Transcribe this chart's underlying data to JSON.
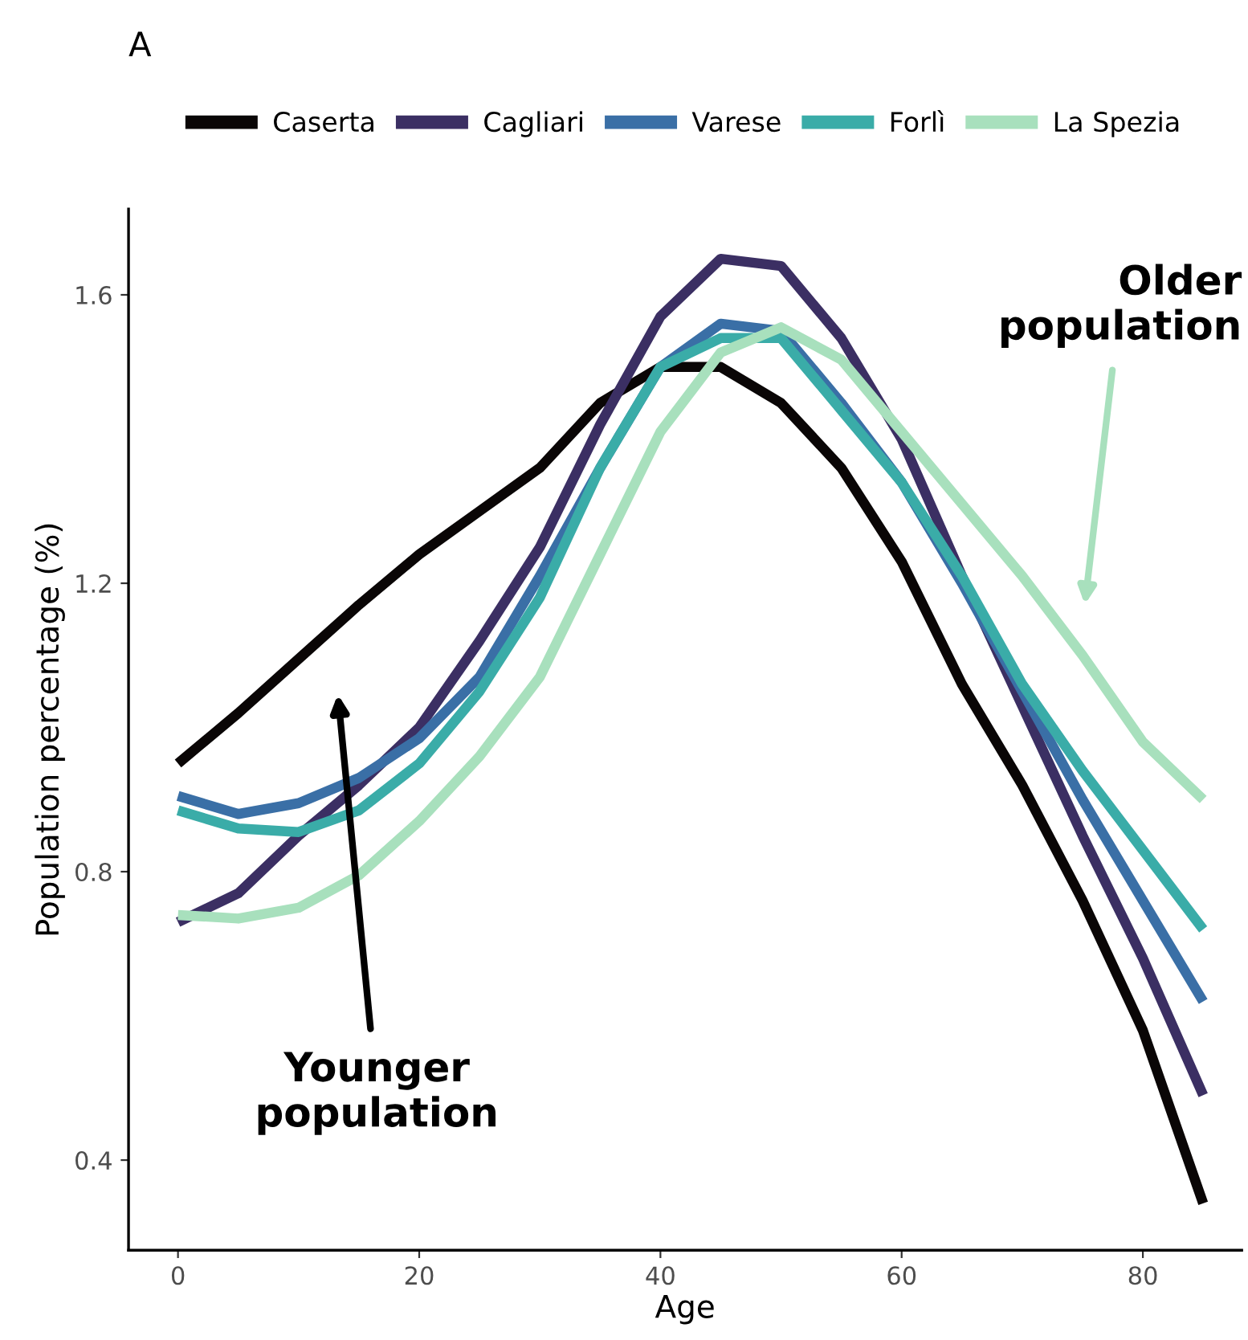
{
  "chart_data": {
    "type": "line",
    "title": "A",
    "xlabel": "Age",
    "ylabel": "Population percentage (%)",
    "x": [
      0,
      5,
      10,
      15,
      20,
      25,
      30,
      35,
      40,
      45,
      50,
      55,
      60,
      65,
      70,
      75,
      80,
      85
    ],
    "series": [
      {
        "name": "Caserta",
        "color": "#0a0606",
        "values": [
          0.95,
          1.02,
          1.095,
          1.17,
          1.24,
          1.3,
          1.36,
          1.45,
          1.5,
          1.5,
          1.45,
          1.36,
          1.23,
          1.06,
          0.92,
          0.76,
          0.58,
          0.34
        ]
      },
      {
        "name": "Cagliari",
        "color": "#3b2f63",
        "values": [
          0.73,
          0.77,
          0.85,
          0.92,
          1.0,
          1.12,
          1.25,
          1.42,
          1.57,
          1.65,
          1.64,
          1.54,
          1.4,
          1.21,
          1.03,
          0.85,
          0.68,
          0.49
        ]
      },
      {
        "name": "Varese",
        "color": "#3a6fa6",
        "values": [
          0.905,
          0.88,
          0.895,
          0.93,
          0.985,
          1.07,
          1.21,
          1.36,
          1.5,
          1.56,
          1.55,
          1.45,
          1.34,
          1.2,
          1.05,
          0.9,
          0.76,
          0.62
        ]
      },
      {
        "name": "Forlì",
        "color": "#3aaca8",
        "values": [
          0.885,
          0.86,
          0.855,
          0.885,
          0.95,
          1.05,
          1.18,
          1.36,
          1.5,
          1.54,
          1.54,
          1.44,
          1.34,
          1.21,
          1.06,
          0.94,
          0.83,
          0.72
        ]
      },
      {
        "name": "La Spezia",
        "color": "#a8e0bd",
        "values": [
          0.74,
          0.735,
          0.75,
          0.795,
          0.87,
          0.96,
          1.07,
          1.24,
          1.41,
          1.52,
          1.555,
          1.51,
          1.41,
          1.31,
          1.21,
          1.1,
          0.98,
          0.9
        ]
      }
    ],
    "xlim": [
      -4.1,
      88.2
    ],
    "ylim": [
      0.275,
      1.719
    ],
    "xticks": [
      0,
      20,
      40,
      60,
      80
    ],
    "yticks": [
      0.4,
      0.8,
      1.2,
      1.6
    ],
    "grid": false,
    "legend": "top",
    "marker": "none",
    "line_style": "solid",
    "annotations": [
      "Younger\npopulation",
      "Older\npopulation"
    ]
  }
}
